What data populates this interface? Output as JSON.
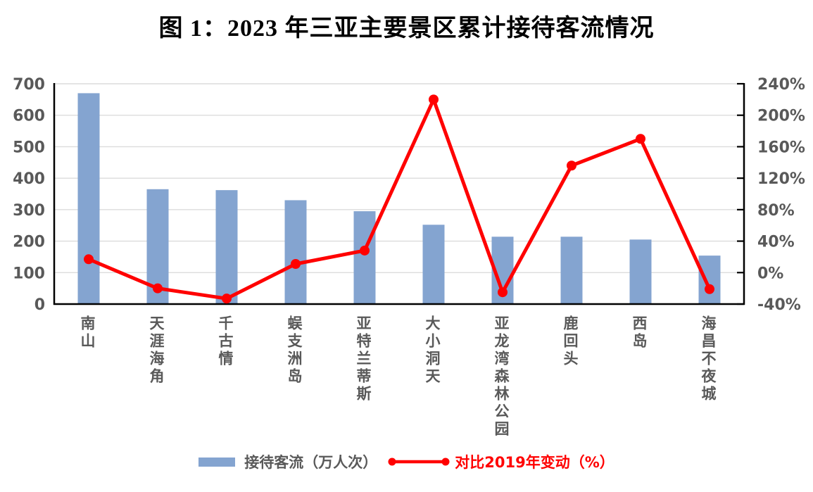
{
  "title": "图 1：2023 年三亚主要景区累计接待客流情况",
  "legend": {
    "bar_label": "接待客流（万人次）",
    "line_label": "对比2019年变动（%）"
  },
  "colors": {
    "bar": "#84A4D0",
    "line": "#FF0000",
    "axis": "#000000",
    "gridline": "#DCDCDC",
    "tick_text": "#595959",
    "title_text": "#000000"
  },
  "chart_data": {
    "type": "bar",
    "subtype": "combo-bar-line-dual-axis",
    "title": "图 1：2023 年三亚主要景区累计接待客流情况",
    "categories": [
      "南山",
      "天涯海角",
      "千古情",
      "蜈支洲岛",
      "亚特兰蒂斯",
      "大小洞天",
      "亚龙湾森林公园",
      "鹿回头",
      "西岛",
      "海昌不夜城"
    ],
    "series": [
      {
        "name": "接待客流（万人次）",
        "type": "bar",
        "axis": "left",
        "values": [
          670,
          365,
          362,
          330,
          295,
          252,
          214,
          214,
          205,
          154
        ]
      },
      {
        "name": "对比2019年变动（%）",
        "type": "line",
        "axis": "right",
        "values": [
          17,
          -20,
          -33,
          11,
          28,
          220,
          -25,
          136,
          170,
          -21
        ]
      }
    ],
    "left_axis": {
      "min": 0,
      "max": 700,
      "step": 100,
      "tick_labels": [
        "700",
        "600",
        "500",
        "400",
        "300",
        "200",
        "100",
        "0"
      ]
    },
    "right_axis": {
      "min": -40,
      "max": 240,
      "step": 40,
      "tick_labels": [
        "240%",
        "200%",
        "160%",
        "120%",
        "80%",
        "40%",
        "0%",
        "-40%"
      ]
    },
    "grid": true,
    "legend_position": "bottom"
  }
}
